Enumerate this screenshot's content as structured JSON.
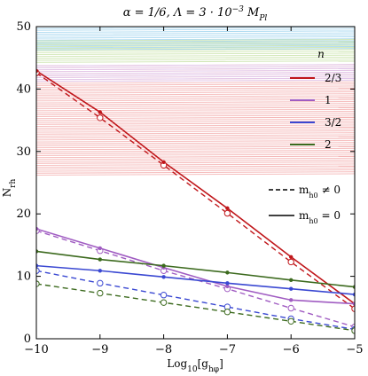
{
  "chart_data": {
    "type": "line",
    "title": "α = 1/6,  Λ = 3 · 10⁻³ M_Pl",
    "xlabel": "Log₁₀[g_hφ]",
    "ylabel": "N_rh",
    "xlim": [
      -10,
      -5
    ],
    "ylim": [
      0,
      50
    ],
    "x_ticks": [
      -10,
      -9,
      -8,
      -7,
      -6,
      -5
    ],
    "x_tick_labels": [
      "−10",
      "−9",
      "−8",
      "−7",
      "−6",
      "−5"
    ],
    "y_ticks": [
      0,
      10,
      20,
      30,
      40,
      50
    ],
    "y_tick_labels": [
      "0",
      "10",
      "20",
      "30",
      "40",
      "50"
    ],
    "bands": [
      {
        "n": "2/3",
        "from": 26,
        "to": 44,
        "color": "#f4b6b6"
      },
      {
        "n": "1",
        "from": 41,
        "to": 44,
        "color": "#e0c6ec"
      },
      {
        "n": "3/2",
        "from": 46,
        "to": 50,
        "color": "#a9d8f0"
      },
      {
        "n": "2",
        "from": 44,
        "to": 48,
        "color": "#cfe6b3"
      }
    ],
    "legend_title": "n",
    "legend_style_labels": [
      "m_h0 ≠ 0",
      "m_h0 = 0"
    ],
    "x": [
      -10,
      -9,
      -8,
      -7,
      -6,
      -5
    ],
    "series": [
      {
        "name": "2/3",
        "color": "#c0161a",
        "solid": [
          42.9,
          36.3,
          28.3,
          20.9,
          13.1,
          5.6
        ],
        "dashed": [
          42.6,
          35.4,
          27.8,
          20.1,
          12.3,
          4.8
        ]
      },
      {
        "name": "1",
        "color": "#a05cc2",
        "solid": [
          17.6,
          14.5,
          11.4,
          8.4,
          6.2,
          5.6
        ],
        "dashed": [
          17.3,
          14.1,
          10.9,
          8.0,
          4.9,
          1.9
        ]
      },
      {
        "name": "3/2",
        "color": "#3a48d2",
        "solid": [
          11.7,
          10.9,
          9.9,
          8.9,
          8.0,
          7.1
        ],
        "dashed": [
          10.9,
          8.9,
          7.0,
          5.1,
          3.2,
          1.5
        ]
      },
      {
        "name": "2",
        "color": "#3c6a1e",
        "solid": [
          14.0,
          12.7,
          11.7,
          10.6,
          9.4,
          8.3
        ],
        "dashed": [
          8.8,
          7.3,
          5.8,
          4.3,
          2.8,
          1.3
        ]
      }
    ],
    "grid": false,
    "legend_position": "right"
  }
}
